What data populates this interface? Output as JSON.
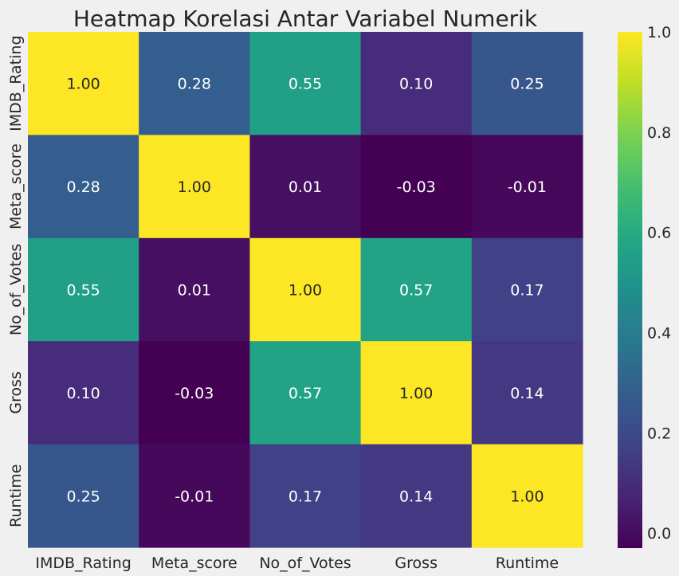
{
  "chart_data": {
    "type": "heatmap",
    "title": "Heatmap Korelasi Antar Variabel Numerik",
    "x_categories": [
      "IMDB_Rating",
      "Meta_score",
      "No_of_Votes",
      "Gross",
      "Runtime"
    ],
    "y_categories": [
      "IMDB_Rating",
      "Meta_score",
      "No_of_Votes",
      "Gross",
      "Runtime"
    ],
    "values": [
      [
        1.0,
        0.28,
        0.55,
        0.1,
        0.25
      ],
      [
        0.28,
        1.0,
        0.01,
        -0.03,
        -0.01
      ],
      [
        0.55,
        0.01,
        1.0,
        0.57,
        0.17
      ],
      [
        0.1,
        -0.03,
        0.57,
        1.0,
        0.14
      ],
      [
        0.25,
        -0.01,
        0.17,
        0.14,
        1.0
      ]
    ],
    "value_format": "0.00",
    "colormap": "viridis",
    "color_range": [
      -0.03,
      1.0
    ],
    "colorbar": {
      "ticks": [
        "0.0",
        "0.2",
        "0.4",
        "0.6",
        "0.8",
        "1.0"
      ],
      "tick_values": [
        0.0,
        0.2,
        0.4,
        0.6,
        0.8,
        1.0
      ],
      "placement": "right"
    },
    "xlabel": "",
    "ylabel": "",
    "grid": false
  },
  "colors": {
    "background": "#f0f0f0",
    "text": "#262626",
    "light_annotation": "#ffffff",
    "dark_annotation": "#262626"
  }
}
